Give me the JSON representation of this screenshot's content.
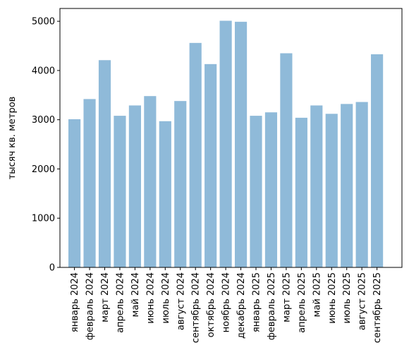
{
  "chart_data": {
    "type": "bar",
    "title": "",
    "xlabel": "",
    "ylabel": "тысяч кв. метров",
    "categories": [
      "январь 2024",
      "февраль 2024",
      "март 2024",
      "апрель 2024",
      "май 2024",
      "июнь 2024",
      "июль 2024",
      "август 2024",
      "сентябрь 2024",
      "октябрь 2024",
      "ноябрь 2024",
      "декабрь 2024",
      "январь 2025",
      "февраль 2025",
      "март 2025",
      "апрель 2025",
      "май 2025",
      "июнь 2025",
      "июль 2025",
      "август 2025",
      "сентябрь 2025"
    ],
    "values": [
      3010,
      3420,
      4210,
      3080,
      3290,
      3480,
      2970,
      3380,
      4560,
      4130,
      5010,
      4990,
      3080,
      3150,
      4350,
      3040,
      3290,
      3120,
      3320,
      3360,
      4330
    ],
    "ylim": [
      0,
      5260
    ],
    "yticks": [
      0,
      1000,
      2000,
      3000,
      4000,
      5000
    ],
    "bar_color": "#8fbad9",
    "grid": false,
    "legend": "none"
  }
}
